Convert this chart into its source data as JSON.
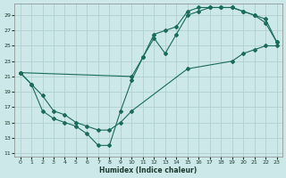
{
  "xlabel": "Humidex (Indice chaleur)",
  "bg_color": "#cce8e8",
  "line_color": "#1a6b5a",
  "grid_color": "#b0d0d0",
  "xlim": [
    -0.5,
    23.5
  ],
  "ylim": [
    10.5,
    30.0
  ],
  "xticks": [
    0,
    1,
    2,
    3,
    4,
    5,
    6,
    7,
    8,
    9,
    10,
    11,
    12,
    13,
    14,
    15,
    16,
    17,
    18,
    19,
    20,
    21,
    22,
    23
  ],
  "yticks": [
    11,
    13,
    15,
    17,
    19,
    21,
    23,
    25,
    27,
    29
  ],
  "line1_x": [
    0,
    1,
    2,
    3,
    4,
    5,
    6,
    7,
    8,
    9,
    10,
    11,
    12,
    13,
    14,
    15,
    16,
    17,
    18,
    19,
    20,
    21,
    22,
    23
  ],
  "line1_y": [
    21.5,
    20.0,
    16.5,
    15.5,
    15.0,
    14.5,
    13.5,
    12.0,
    12.0,
    16.5,
    20.5,
    23.5,
    26.0,
    24.0,
    26.5,
    29.0,
    29.5,
    30.0,
    30.0,
    30.0,
    29.5,
    29.0,
    28.0,
    25.5
  ],
  "line2_x": [
    0,
    10,
    11,
    12,
    13,
    14,
    15,
    16,
    17,
    18,
    19,
    20,
    21,
    22,
    23
  ],
  "line2_y": [
    21.5,
    21.0,
    23.5,
    26.5,
    27.0,
    27.5,
    29.5,
    30.0,
    30.0,
    30.0,
    30.0,
    29.5,
    29.0,
    28.5,
    25.5
  ],
  "line3_x": [
    0,
    1,
    2,
    3,
    4,
    5,
    6,
    7,
    8,
    9,
    10,
    15,
    19,
    20,
    21,
    22,
    23
  ],
  "line3_y": [
    21.5,
    20.0,
    18.5,
    16.5,
    16.0,
    15.0,
    14.5,
    14.0,
    14.0,
    15.0,
    16.5,
    22.0,
    23.0,
    24.0,
    24.5,
    25.0,
    25.0
  ]
}
